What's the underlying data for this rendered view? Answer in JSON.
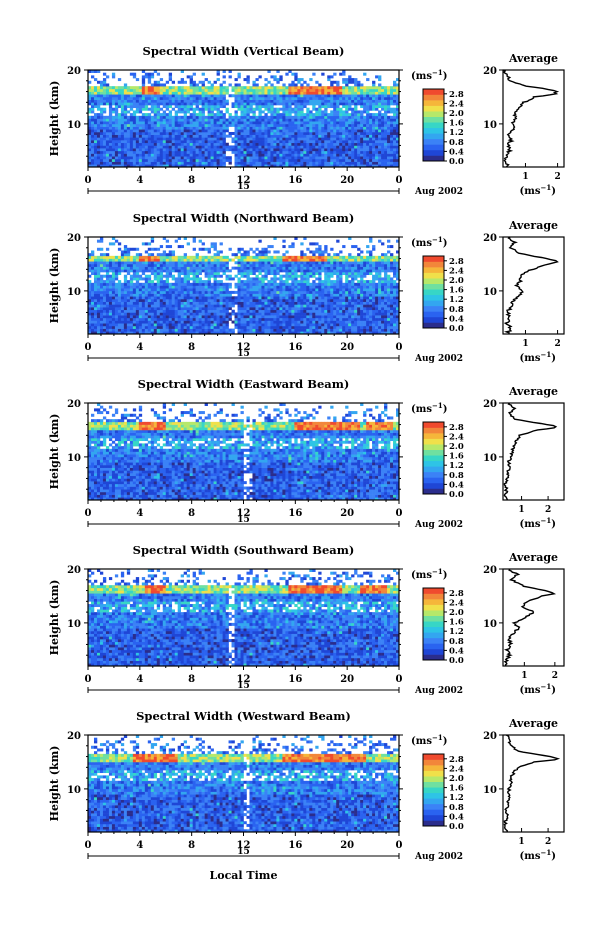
{
  "figure": {
    "xlabel": "Local Time",
    "date_label": "Aug 2002",
    "day_label": "15",
    "colorbar_unit": "(ms",
    "colorbar_unit_exp": "−1",
    "avg_title": "Average",
    "avg_unit": "(ms",
    "avg_unit_exp": "−1",
    "palette": [
      "#2b2d8c",
      "#1f46d6",
      "#2a63f0",
      "#3b82f6",
      "#33a6f0",
      "#2ec4e6",
      "#37d6c6",
      "#6fe0a0",
      "#b6e86a",
      "#f0e04a",
      "#f5b63a",
      "#f2863a",
      "#f04a2e"
    ]
  },
  "chart_data": [
    {
      "type": "heatmap",
      "title": "Spectral Width (Vertical Beam)",
      "ylabel": "Height (km)",
      "x_ticks": [
        "0",
        "4",
        "8",
        "12",
        "16",
        "20",
        "0"
      ],
      "y_ticks": [
        "20",
        "10"
      ],
      "xlim": [
        0,
        24
      ],
      "ylim": [
        2,
        20
      ],
      "colorbar": {
        "range": [
          0,
          3.0
        ],
        "ticks": [
          "2.8",
          "2.4",
          "2.0",
          "1.6",
          "1.2",
          "0.8",
          "0.4",
          "0.0"
        ]
      },
      "structure": {
        "tropopause_km": 16.2,
        "peak_hours": [
          [
            4.2,
            5.5
          ],
          [
            15.5,
            19.5
          ]
        ],
        "gap_hours": [
          10.5,
          11.3
        ]
      },
      "average_profile": {
        "x_ticks": [
          "1",
          "2"
        ],
        "xlim": [
          0.3,
          2.2
        ],
        "height_km": [
          2,
          3,
          4,
          5,
          6,
          7,
          8,
          9,
          10,
          11,
          12,
          13,
          14,
          15,
          15.5,
          16,
          16.5,
          17,
          18,
          19,
          20
        ],
        "value": [
          0.45,
          0.38,
          0.42,
          0.5,
          0.47,
          0.55,
          0.5,
          0.62,
          0.58,
          0.72,
          0.66,
          0.85,
          0.95,
          1.3,
          1.9,
          2.0,
          1.6,
          1.0,
          0.55,
          0.4,
          0.35
        ]
      }
    },
    {
      "type": "heatmap",
      "title": "Spectral Width (Northward Beam)",
      "ylabel": "Height (km)",
      "x_ticks": [
        "0",
        "4",
        "8",
        "12",
        "16",
        "20",
        "0"
      ],
      "y_ticks": [
        "20",
        "10"
      ],
      "xlim": [
        0,
        24
      ],
      "ylim": [
        2,
        20
      ],
      "colorbar": {
        "range": [
          0,
          3.0
        ],
        "ticks": [
          "2.8",
          "2.4",
          "2.0",
          "1.6",
          "1.2",
          "0.8",
          "0.4",
          "0.0"
        ]
      },
      "structure": {
        "tropopause_km": 16.0,
        "peak_hours": [
          [
            4.0,
            5.5
          ],
          [
            15.0,
            18.5
          ]
        ],
        "gap_hours": [
          10.8,
          11.5
        ]
      },
      "average_profile": {
        "x_ticks": [
          "1",
          "2"
        ],
        "xlim": [
          0.3,
          2.2
        ],
        "height_km": [
          2,
          3,
          4,
          5,
          6,
          7,
          8,
          9,
          10,
          11,
          12,
          13,
          14,
          15,
          15.5,
          16,
          16.5,
          17,
          18,
          19,
          20
        ],
        "value": [
          0.4,
          0.55,
          0.42,
          0.48,
          0.45,
          0.52,
          0.6,
          0.75,
          0.95,
          0.7,
          0.85,
          0.9,
          1.2,
          1.7,
          2.0,
          1.7,
          1.2,
          0.8,
          0.55,
          0.65,
          0.5
        ]
      }
    },
    {
      "type": "heatmap",
      "title": "Spectral Width (Eastward Beam)",
      "ylabel": "Height (km)",
      "x_ticks": [
        "0",
        "4",
        "8",
        "12",
        "16",
        "20",
        "0"
      ],
      "y_ticks": [
        "20",
        "10"
      ],
      "xlim": [
        0,
        24
      ],
      "ylim": [
        2,
        20
      ],
      "colorbar": {
        "range": [
          0,
          3.0
        ],
        "ticks": [
          "2.8",
          "2.4",
          "2.0",
          "1.6",
          "1.2",
          "0.8",
          "0.4",
          "0.0"
        ]
      },
      "structure": {
        "tropopause_km": 15.8,
        "peak_hours": [
          [
            4.0,
            6.0
          ],
          [
            16.0,
            21.0
          ],
          [
            21.5,
            23.5
          ]
        ],
        "gap_hours": [
          12.0,
          12.6
        ]
      },
      "average_profile": {
        "x_ticks": [
          "1",
          "2"
        ],
        "xlim": [
          0.3,
          2.6
        ],
        "height_km": [
          2,
          3,
          4,
          5,
          6,
          7,
          8,
          9,
          10,
          11,
          12,
          13,
          14,
          15,
          15.5,
          16,
          16.5,
          17,
          18,
          19,
          20
        ],
        "value": [
          0.42,
          0.38,
          0.45,
          0.4,
          0.48,
          0.46,
          0.55,
          0.52,
          0.6,
          0.65,
          0.7,
          0.8,
          0.95,
          1.6,
          2.4,
          2.0,
          1.3,
          0.8,
          0.55,
          0.7,
          0.5
        ]
      }
    },
    {
      "type": "heatmap",
      "title": "Spectral Width (Southward Beam)",
      "ylabel": "Height (km)",
      "x_ticks": [
        "0",
        "4",
        "8",
        "12",
        "16",
        "20",
        "0"
      ],
      "y_ticks": [
        "20",
        "10"
      ],
      "xlim": [
        0,
        24
      ],
      "ylim": [
        2,
        20
      ],
      "colorbar": {
        "range": [
          0,
          3.0
        ],
        "ticks": [
          "2.8",
          "2.4",
          "2.0",
          "1.6",
          "1.2",
          "0.8",
          "0.4",
          "0.0"
        ]
      },
      "structure": {
        "tropopause_km": 16.3,
        "peak_hours": [
          [
            4.5,
            6.0
          ],
          [
            15.5,
            19.5
          ],
          [
            21.0,
            23.0
          ]
        ],
        "gap_hours": [
          10.8,
          11.4
        ]
      },
      "average_profile": {
        "x_ticks": [
          "1",
          "2"
        ],
        "xlim": [
          0.3,
          2.3
        ],
        "height_km": [
          2,
          3,
          4,
          5,
          6,
          7,
          8,
          9,
          10,
          11,
          12,
          13,
          14,
          15,
          15.5,
          16,
          16.5,
          17,
          18,
          19,
          20
        ],
        "value": [
          0.45,
          0.4,
          0.5,
          0.45,
          0.55,
          0.5,
          0.65,
          0.8,
          0.7,
          1.05,
          1.3,
          0.95,
          1.1,
          1.6,
          2.0,
          1.7,
          1.2,
          0.9,
          0.6,
          0.75,
          0.5
        ]
      }
    },
    {
      "type": "heatmap",
      "title": "Spectral Width (Westward Beam)",
      "ylabel": "Height (km)",
      "x_ticks": [
        "0",
        "4",
        "8",
        "12",
        "16",
        "20",
        "0"
      ],
      "y_ticks": [
        "20",
        "10"
      ],
      "xlim": [
        0,
        24
      ],
      "ylim": [
        2,
        20
      ],
      "colorbar": {
        "range": [
          0,
          3.0
        ],
        "ticks": [
          "2.8",
          "2.4",
          "2.0",
          "1.6",
          "1.2",
          "0.8",
          "0.4",
          "0.0"
        ]
      },
      "structure": {
        "tropopause_km": 15.9,
        "peak_hours": [
          [
            3.5,
            7.0
          ],
          [
            15.0,
            21.5
          ]
        ],
        "gap_hours": [
          12.0,
          12.5
        ]
      },
      "average_profile": {
        "x_ticks": [
          "1",
          "2"
        ],
        "xlim": [
          0.3,
          2.6
        ],
        "height_km": [
          2,
          3,
          4,
          5,
          6,
          7,
          8,
          9,
          10,
          11,
          12,
          13,
          14,
          15,
          15.5,
          16,
          16.5,
          17,
          18,
          19,
          20
        ],
        "value": [
          0.4,
          0.42,
          0.38,
          0.45,
          0.42,
          0.5,
          0.48,
          0.55,
          0.52,
          0.6,
          0.58,
          0.7,
          0.85,
          1.5,
          2.4,
          2.1,
          1.4,
          0.9,
          0.6,
          0.5,
          0.45
        ]
      }
    }
  ]
}
